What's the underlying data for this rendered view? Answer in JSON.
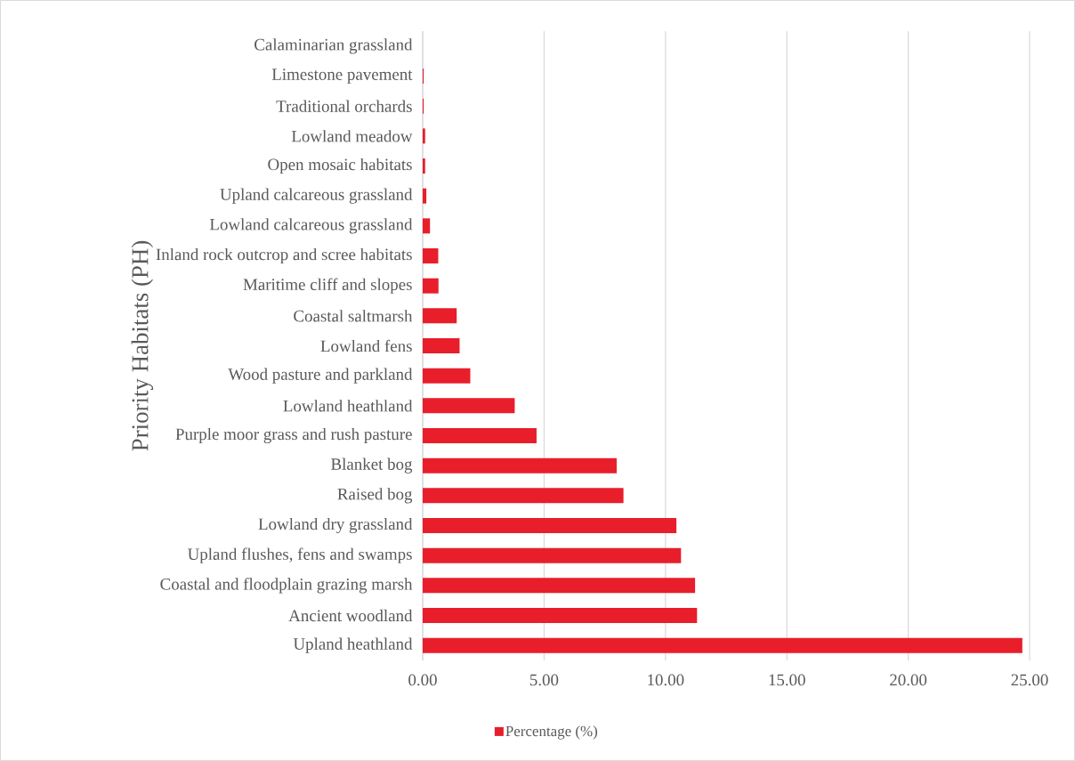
{
  "chart_data": {
    "type": "bar",
    "orientation": "horizontal",
    "ylabel": "Priority Habitats (PH)",
    "categories": [
      "Calaminarian grassland",
      "Limestone pavement",
      "Traditional orchards",
      "Lowland meadow",
      "Open mosaic habitats",
      "Upland calcareous grassland",
      "Lowland calcareous grassland",
      "Inland rock outcrop and scree habitats",
      "Maritime cliff and slopes",
      "Coastal saltmarsh",
      "Lowland fens",
      "Wood pasture and parkland",
      "Lowland heathland",
      "Purple moor grass and rush pasture",
      "Blanket bog",
      "Raised bog",
      "Lowland dry grassland",
      "Upland flushes, fens and swamps",
      "Coastal and floodplain grazing marsh",
      "Ancient woodland",
      "Upland heathland"
    ],
    "series": [
      {
        "name": "Percentage (%)",
        "color": "#e81e2b",
        "values": [
          null,
          0.04,
          0.04,
          0.1,
          0.1,
          0.15,
          0.3,
          0.64,
          0.65,
          1.4,
          1.52,
          1.96,
          3.79,
          4.69,
          7.99,
          8.27,
          10.45,
          10.64,
          11.22,
          11.3,
          24.7
        ]
      }
    ],
    "xlim": [
      0,
      25
    ],
    "xticks": [
      {
        "value": 0,
        "label": "0.00"
      },
      {
        "value": 5,
        "label": "5.00"
      },
      {
        "value": 10,
        "label": "10.00"
      },
      {
        "value": 15,
        "label": "15.00"
      },
      {
        "value": 20,
        "label": "20.00"
      },
      {
        "value": 25,
        "label": "25.00"
      }
    ],
    "grid": "x",
    "legend": "bottom"
  }
}
